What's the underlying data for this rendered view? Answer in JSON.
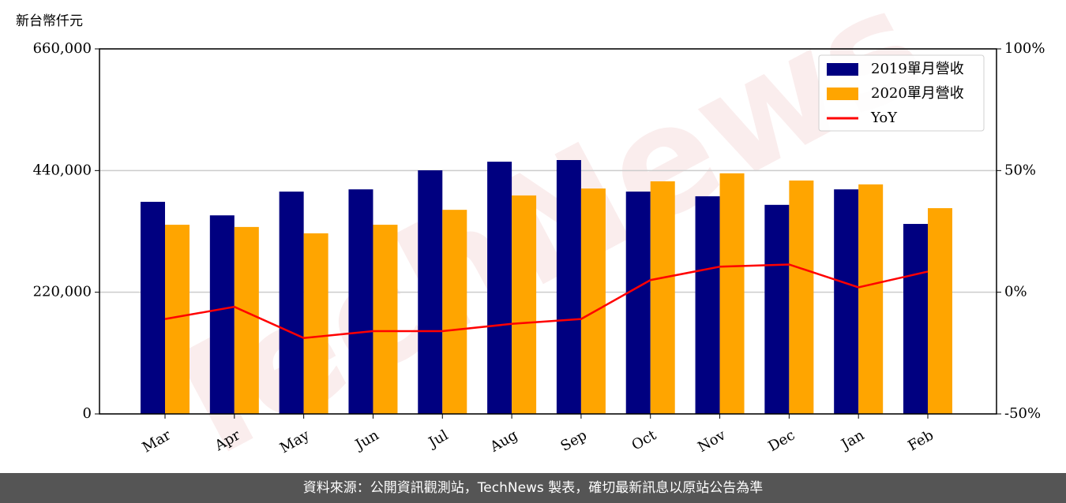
{
  "chart_data": {
    "type": "bar-line",
    "unit_label": "新台幣仟元",
    "watermark": "TechNews",
    "footer": "資料來源：公開資訊觀測站，TechNews 製表，確切最新訊息以原站公告為準",
    "categories": [
      "Mar",
      "Apr",
      "May",
      "Jun",
      "Jul",
      "Aug",
      "Sep",
      "Oct",
      "Nov",
      "Dec",
      "Jan",
      "Feb"
    ],
    "series": [
      {
        "name": "2019單月營收",
        "type": "bar",
        "color": "#000080",
        "values": [
          383500,
          359000,
          402000,
          406000,
          440500,
          456000,
          459000,
          402000,
          393500,
          378000,
          406000,
          343500
        ]
      },
      {
        "name": "2020單月營收",
        "type": "bar",
        "color": "#ffa500",
        "values": [
          342000,
          338000,
          326500,
          342000,
          369000,
          395000,
          407500,
          420500,
          435000,
          422000,
          415000,
          372000
        ]
      },
      {
        "name": "YoY",
        "type": "line",
        "axis": "y2",
        "color": "#ff0000",
        "values": [
          -11,
          -6,
          -18.8,
          -16,
          -16,
          -13,
          -11,
          5,
          10.5,
          11.4,
          2,
          8.5
        ]
      }
    ],
    "ylim": [
      0,
      660000
    ],
    "yticks": [
      {
        "value": 0,
        "label": "0"
      },
      {
        "value": 220000,
        "label": "220,000"
      },
      {
        "value": 440000,
        "label": "440,000"
      },
      {
        "value": 660000,
        "label": "660,000"
      }
    ],
    "y2lim": [
      -50,
      100
    ],
    "y2ticks": [
      {
        "value": -50,
        "label": "-50%"
      },
      {
        "value": 0,
        "label": "0%"
      },
      {
        "value": 50,
        "label": "50%"
      },
      {
        "value": 100,
        "label": "100%"
      }
    ],
    "grid": true,
    "legend": "upper right"
  }
}
